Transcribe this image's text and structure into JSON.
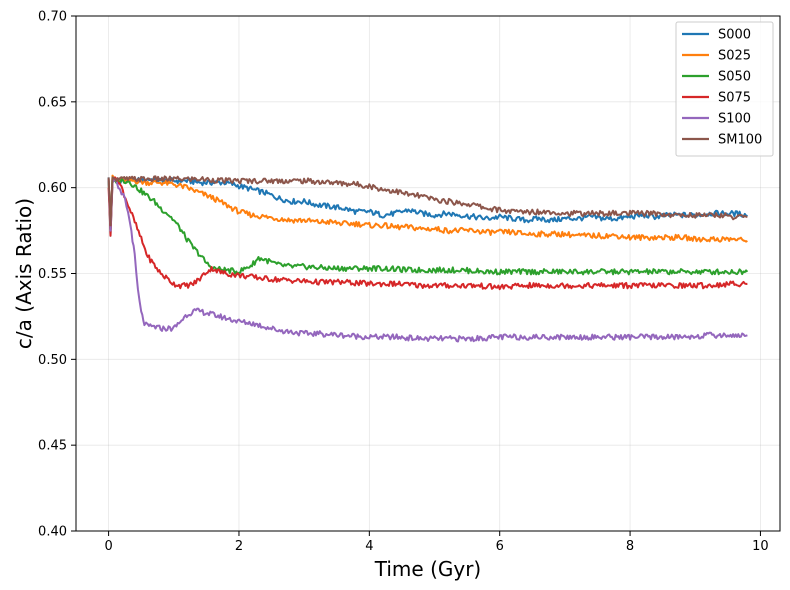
{
  "chart_data": {
    "type": "line",
    "title": "",
    "xlabel": "Time (Gyr)",
    "ylabel": "c/a (Axis Ratio)",
    "xlim": [
      -0.5,
      10.3
    ],
    "ylim": [
      0.4,
      0.7
    ],
    "xticks": [
      0,
      2,
      4,
      6,
      8,
      10
    ],
    "yticks": [
      0.4,
      0.45,
      0.5,
      0.55,
      0.6,
      0.65,
      0.7
    ],
    "xtick_labels": [
      "0",
      "2",
      "4",
      "6",
      "8",
      "10"
    ],
    "ytick_labels": [
      "0.40",
      "0.45",
      "0.50",
      "0.55",
      "0.60",
      "0.65",
      "0.70"
    ],
    "grid": true,
    "legend_position": "top-right",
    "series": [
      {
        "name": "S000",
        "color": "#1f77b4",
        "x": [
          0,
          0.03,
          0.06,
          0.1,
          0.2,
          0.4,
          0.6,
          0.8,
          1.0,
          1.2,
          1.4,
          1.6,
          1.8,
          2.0,
          2.2,
          2.4,
          2.6,
          2.8,
          3.0,
          3.2,
          3.4,
          3.6,
          3.8,
          4.0,
          4.2,
          4.4,
          4.6,
          4.8,
          5.0,
          5.2,
          5.4,
          5.6,
          5.8,
          6.0,
          6.2,
          6.4,
          6.6,
          6.8,
          7.0,
          7.2,
          7.4,
          7.6,
          7.8,
          8.0,
          8.2,
          8.4,
          8.6,
          8.8,
          9.0,
          9.2,
          9.4,
          9.6,
          9.8
        ],
        "y": [
          0.606,
          0.572,
          0.605,
          0.604,
          0.604,
          0.604,
          0.605,
          0.604,
          0.604,
          0.604,
          0.603,
          0.603,
          0.603,
          0.601,
          0.599,
          0.597,
          0.594,
          0.592,
          0.592,
          0.59,
          0.589,
          0.588,
          0.586,
          0.586,
          0.584,
          0.585,
          0.587,
          0.585,
          0.584,
          0.585,
          0.584,
          0.583,
          0.582,
          0.583,
          0.582,
          0.581,
          0.582,
          0.581,
          0.582,
          0.582,
          0.583,
          0.582,
          0.582,
          0.583,
          0.584,
          0.583,
          0.584,
          0.584,
          0.584,
          0.585,
          0.585,
          0.585,
          0.584
        ]
      },
      {
        "name": "S025",
        "color": "#ff7f0e",
        "x": [
          0,
          0.03,
          0.06,
          0.1,
          0.2,
          0.4,
          0.6,
          0.8,
          1.0,
          1.2,
          1.4,
          1.6,
          1.8,
          2.0,
          2.2,
          2.4,
          2.6,
          2.8,
          3.0,
          3.2,
          3.4,
          3.6,
          3.8,
          4.0,
          4.2,
          4.4,
          4.6,
          4.8,
          5.0,
          5.2,
          5.4,
          5.6,
          5.8,
          6.0,
          6.2,
          6.4,
          6.6,
          6.8,
          7.0,
          7.2,
          7.4,
          7.6,
          7.8,
          8.0,
          8.2,
          8.4,
          8.6,
          8.8,
          9.0,
          9.2,
          9.4,
          9.6,
          9.8
        ],
        "y": [
          0.605,
          0.575,
          0.607,
          0.605,
          0.604,
          0.604,
          0.603,
          0.603,
          0.602,
          0.6,
          0.597,
          0.594,
          0.59,
          0.586,
          0.584,
          0.583,
          0.582,
          0.581,
          0.581,
          0.58,
          0.58,
          0.579,
          0.579,
          0.578,
          0.578,
          0.577,
          0.577,
          0.576,
          0.576,
          0.575,
          0.575,
          0.575,
          0.574,
          0.574,
          0.574,
          0.573,
          0.573,
          0.573,
          0.573,
          0.572,
          0.572,
          0.572,
          0.572,
          0.571,
          0.571,
          0.571,
          0.571,
          0.571,
          0.57,
          0.57,
          0.57,
          0.57,
          0.569
        ]
      },
      {
        "name": "S050",
        "color": "#2ca02c",
        "x": [
          0,
          0.03,
          0.06,
          0.1,
          0.2,
          0.3,
          0.4,
          0.5,
          0.6,
          0.7,
          0.8,
          0.9,
          1.0,
          1.1,
          1.2,
          1.3,
          1.4,
          1.5,
          1.6,
          1.8,
          2.0,
          2.2,
          2.3,
          2.4,
          2.6,
          2.8,
          3.0,
          3.4,
          3.8,
          4.2,
          4.6,
          5.0,
          5.4,
          5.8,
          6.2,
          6.6,
          7.0,
          7.4,
          7.8,
          8.2,
          8.6,
          9.0,
          9.4,
          9.8
        ],
        "y": [
          0.604,
          0.575,
          0.606,
          0.604,
          0.604,
          0.604,
          0.601,
          0.598,
          0.595,
          0.592,
          0.588,
          0.585,
          0.581,
          0.576,
          0.57,
          0.565,
          0.561,
          0.556,
          0.553,
          0.552,
          0.551,
          0.555,
          0.559,
          0.558,
          0.555,
          0.554,
          0.554,
          0.553,
          0.553,
          0.553,
          0.552,
          0.552,
          0.552,
          0.551,
          0.551,
          0.551,
          0.551,
          0.551,
          0.551,
          0.551,
          0.551,
          0.551,
          0.551,
          0.551
        ]
      },
      {
        "name": "S075",
        "color": "#d62728",
        "x": [
          0,
          0.03,
          0.06,
          0.1,
          0.15,
          0.2,
          0.3,
          0.4,
          0.5,
          0.6,
          0.7,
          0.8,
          0.9,
          1.0,
          1.1,
          1.2,
          1.3,
          1.4,
          1.5,
          1.6,
          1.7,
          1.8,
          2.0,
          2.2,
          2.4,
          2.8,
          3.2,
          3.6,
          4.0,
          4.4,
          4.8,
          5.2,
          5.6,
          6.0,
          6.4,
          6.8,
          7.2,
          7.6,
          8.0,
          8.4,
          8.8,
          9.2,
          9.6,
          9.8
        ],
        "y": [
          0.6,
          0.572,
          0.603,
          0.606,
          0.604,
          0.6,
          0.59,
          0.58,
          0.57,
          0.56,
          0.555,
          0.55,
          0.547,
          0.544,
          0.543,
          0.543,
          0.544,
          0.547,
          0.551,
          0.553,
          0.551,
          0.55,
          0.549,
          0.548,
          0.547,
          0.546,
          0.545,
          0.545,
          0.544,
          0.544,
          0.543,
          0.543,
          0.543,
          0.542,
          0.543,
          0.543,
          0.543,
          0.543,
          0.543,
          0.543,
          0.543,
          0.543,
          0.544,
          0.544
        ]
      },
      {
        "name": "S100",
        "color": "#9467bd",
        "x": [
          0,
          0.03,
          0.06,
          0.1,
          0.15,
          0.2,
          0.25,
          0.3,
          0.35,
          0.4,
          0.45,
          0.5,
          0.55,
          0.6,
          0.7,
          0.8,
          0.9,
          1.0,
          1.1,
          1.2,
          1.3,
          1.4,
          1.6,
          1.8,
          2.0,
          2.2,
          2.4,
          2.6,
          2.8,
          3.0,
          3.2,
          3.6,
          4.0,
          4.4,
          4.8,
          5.2,
          5.6,
          6.0,
          6.4,
          6.8,
          7.2,
          7.6,
          8.0,
          8.4,
          8.8,
          9.2,
          9.6,
          9.8
        ],
        "y": [
          0.605,
          0.575,
          0.603,
          0.605,
          0.599,
          0.596,
          0.594,
          0.585,
          0.575,
          0.56,
          0.54,
          0.527,
          0.521,
          0.519,
          0.519,
          0.518,
          0.518,
          0.518,
          0.522,
          0.526,
          0.528,
          0.528,
          0.526,
          0.524,
          0.522,
          0.521,
          0.519,
          0.517,
          0.516,
          0.515,
          0.515,
          0.514,
          0.513,
          0.513,
          0.512,
          0.512,
          0.512,
          0.513,
          0.513,
          0.513,
          0.513,
          0.513,
          0.513,
          0.513,
          0.513,
          0.514,
          0.514,
          0.514
        ]
      },
      {
        "name": "SM100",
        "color": "#8c564b",
        "x": [
          0,
          0.03,
          0.06,
          0.1,
          0.3,
          0.6,
          1.0,
          1.4,
          1.8,
          2.2,
          2.6,
          3.0,
          3.4,
          3.8,
          4.0,
          4.2,
          4.4,
          4.6,
          4.8,
          5.0,
          5.2,
          5.4,
          5.6,
          5.8,
          6.0,
          6.2,
          6.4,
          6.6,
          6.8,
          7.0,
          7.2,
          7.4,
          7.6,
          7.8,
          8.0,
          8.2,
          8.4,
          8.6,
          8.8,
          9.0,
          9.2,
          9.4,
          9.6,
          9.8
        ],
        "y": [
          0.606,
          0.578,
          0.606,
          0.605,
          0.605,
          0.605,
          0.605,
          0.605,
          0.604,
          0.604,
          0.604,
          0.604,
          0.603,
          0.602,
          0.601,
          0.599,
          0.598,
          0.596,
          0.595,
          0.593,
          0.592,
          0.591,
          0.59,
          0.588,
          0.587,
          0.586,
          0.586,
          0.586,
          0.586,
          0.585,
          0.585,
          0.585,
          0.585,
          0.585,
          0.585,
          0.585,
          0.585,
          0.584,
          0.584,
          0.584,
          0.584,
          0.584,
          0.583,
          0.583
        ]
      }
    ]
  }
}
